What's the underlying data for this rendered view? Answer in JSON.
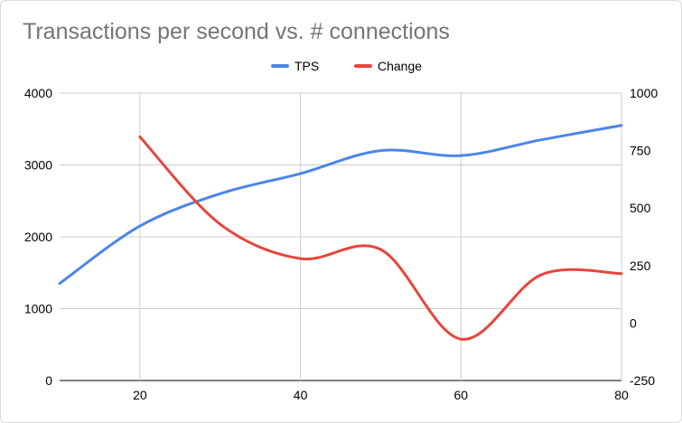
{
  "chart_data": {
    "type": "line",
    "title": "Transactions per second vs. # connections",
    "x_ticks": [
      20,
      40,
      60,
      80
    ],
    "xlim": [
      10,
      80
    ],
    "y_left_ticks": [
      0,
      1000,
      2000,
      3000,
      4000
    ],
    "y_left_lim": [
      0,
      4000
    ],
    "y_right_ticks": [
      -250,
      0,
      250,
      500,
      750,
      1000
    ],
    "y_right_lim": [
      -250,
      1000
    ],
    "grid": true,
    "legend_position": "top-center",
    "series": [
      {
        "name": "TPS",
        "axis": "left",
        "color": "#4a86e8",
        "x": [
          10,
          20,
          30,
          40,
          50,
          60,
          70,
          80
        ],
        "y": [
          1350,
          2150,
          2600,
          2880,
          3200,
          3130,
          3350,
          3550
        ]
      },
      {
        "name": "Change",
        "axis": "right",
        "color": "#e8453c",
        "x": [
          20,
          30,
          40,
          50,
          60,
          70,
          80
        ],
        "y": [
          810,
          430,
          280,
          320,
          -70,
          210,
          215
        ]
      }
    ]
  }
}
